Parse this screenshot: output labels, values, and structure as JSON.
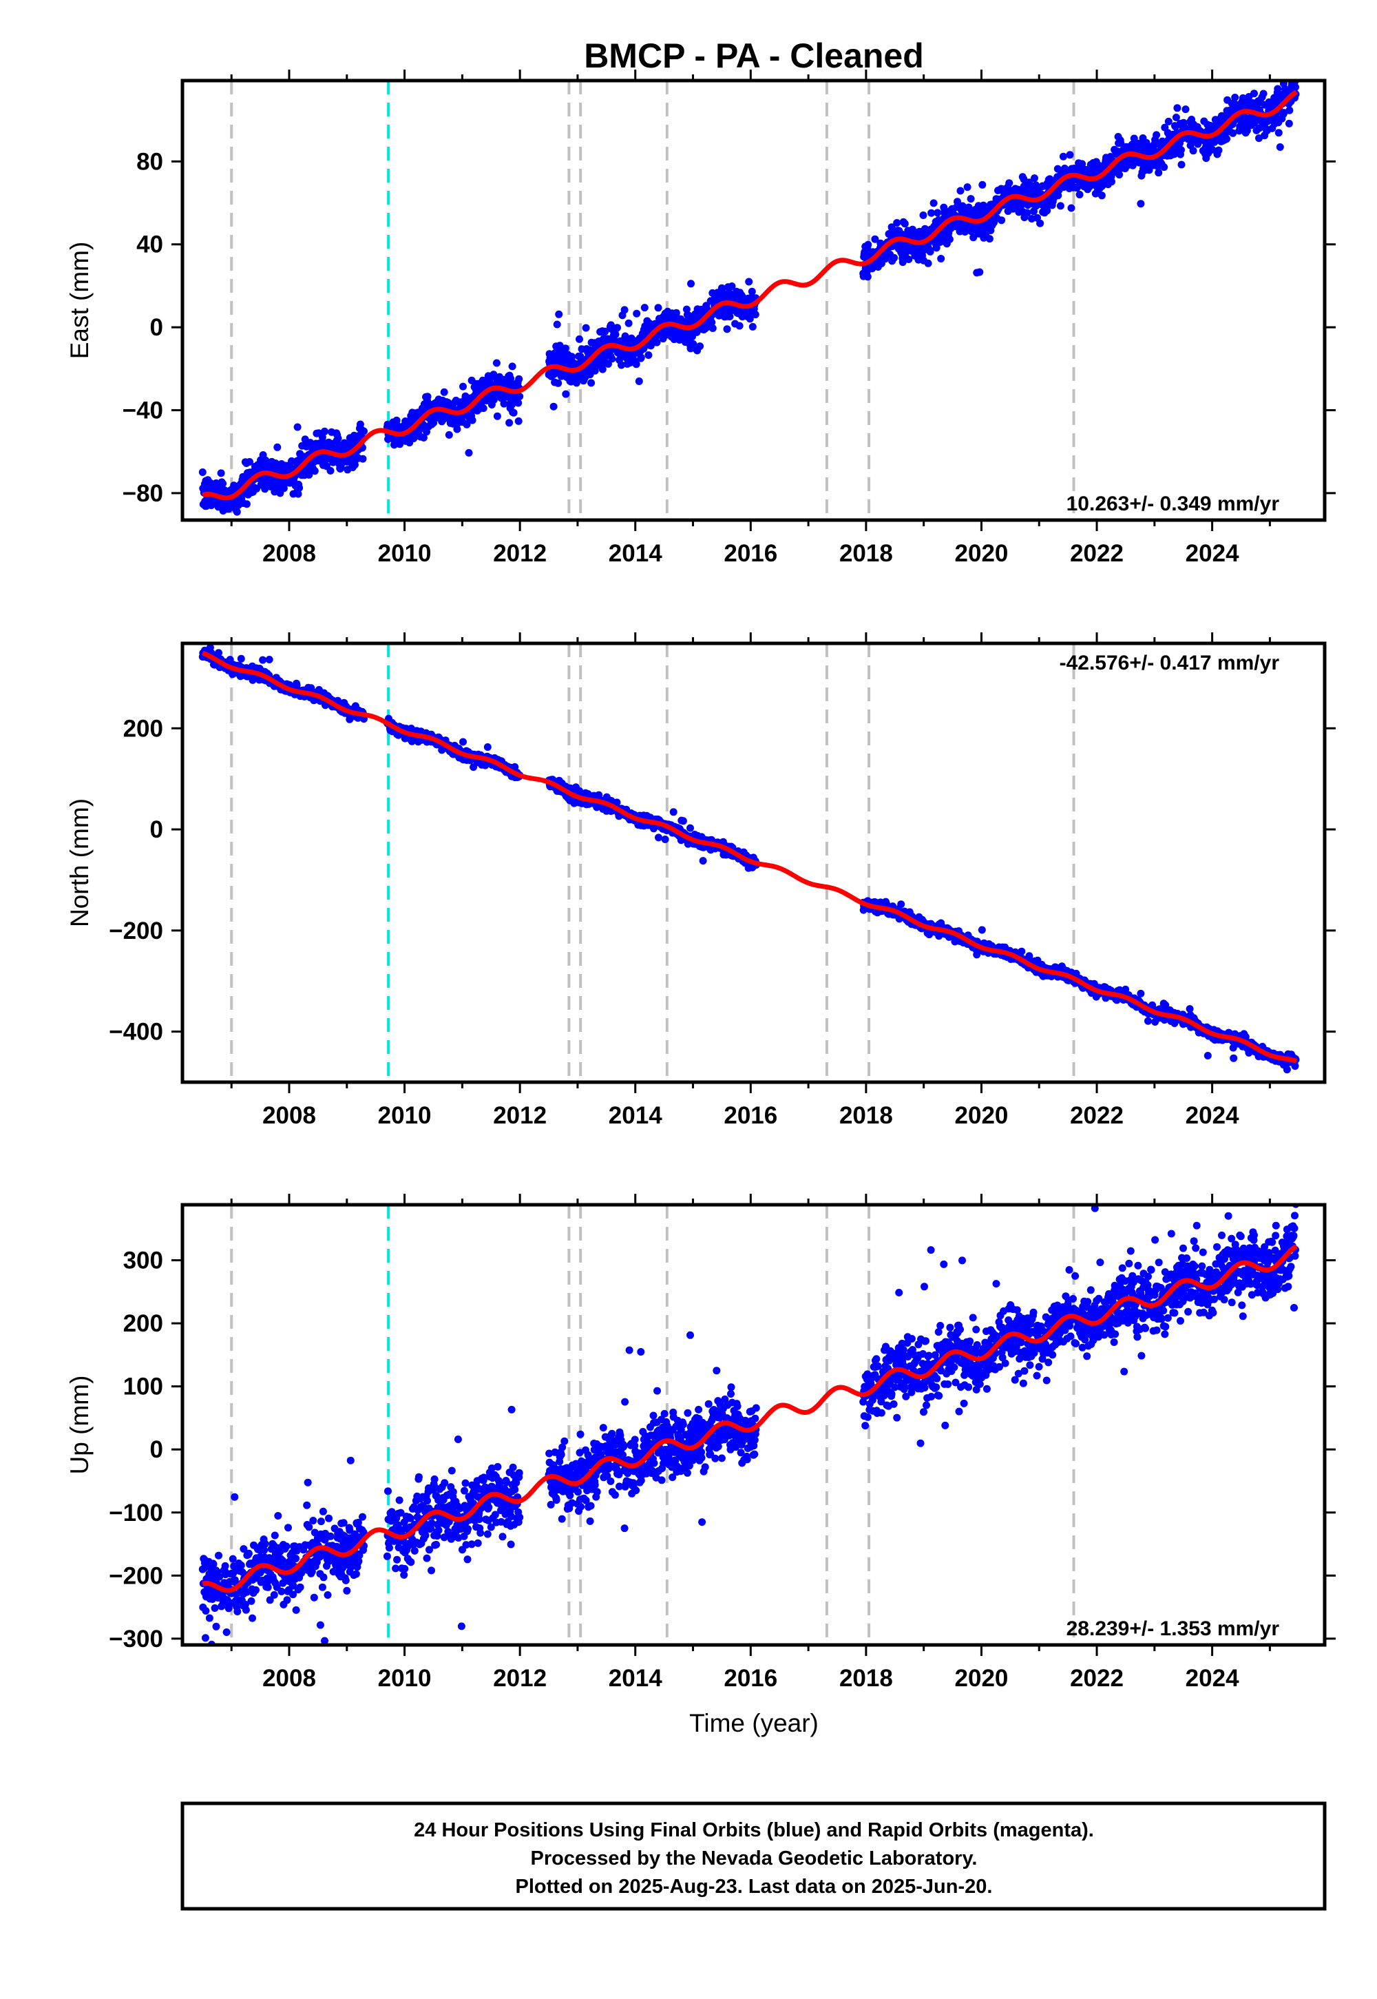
{
  "title": "BMCP  - PA - Cleaned",
  "x_axis_label": "Time (year)",
  "footer": {
    "line1": "24 Hour Positions Using Final Orbits (blue) and Rapid Orbits (magenta).",
    "line2": "Processed by the Nevada Geodetic Laboratory.",
    "line3": "Plotted on 2025-Aug-23. Last data on 2025-Jun-20."
  },
  "colors": {
    "data_points": "#0000ff",
    "model_line": "#ff0000",
    "equipment_change_lines": "#c0c0c0",
    "event_line": "#00e5e5"
  },
  "chart_data": [
    {
      "type": "scatter",
      "panel": "east",
      "ylabel": "East (mm)",
      "rate_text": "10.263+/- 0.349 mm/yr",
      "rate_position": "bottom-right",
      "xlim": [
        2006.15,
        2025.95
      ],
      "ylim": [
        -93,
        119
      ],
      "xticks": [
        2008,
        2010,
        2012,
        2014,
        2016,
        2018,
        2020,
        2022,
        2024
      ],
      "yticks": [
        -80,
        -40,
        0,
        40,
        80
      ],
      "trend_start": -84,
      "rate": 10.263,
      "seasonal_amp": 3,
      "noise": 4,
      "data_segments": [
        [
          2006.5,
          2009.3
        ],
        [
          2009.7,
          2012.0
        ],
        [
          2012.5,
          2016.1
        ],
        [
          2017.95,
          2025.45
        ]
      ],
      "data_range": [
        2006.5,
        2025.46
      ],
      "vertical_lines_dashed_gray": [
        2007.0,
        2012.85,
        2013.05,
        2014.55,
        2017.32,
        2018.05,
        2021.6
      ],
      "vertical_line_cyan": 2009.72
    },
    {
      "type": "scatter",
      "panel": "north",
      "ylabel": "North (mm)",
      "rate_text": "-42.576+/- 0.417 mm/yr",
      "rate_position": "top-right",
      "xlim": [
        2006.15,
        2025.95
      ],
      "ylim": [
        -500,
        368
      ],
      "xticks": [
        2008,
        2010,
        2012,
        2014,
        2016,
        2018,
        2020,
        2022,
        2024
      ],
      "yticks": [
        -400,
        -200,
        0,
        200
      ],
      "trend_start": 345,
      "rate": -42.576,
      "seasonal_amp": 4,
      "noise": 5,
      "data_segments": [
        [
          2006.5,
          2009.3
        ],
        [
          2009.7,
          2012.0
        ],
        [
          2012.5,
          2016.1
        ],
        [
          2017.95,
          2025.45
        ]
      ],
      "data_range": [
        2006.5,
        2025.46
      ],
      "vertical_lines_dashed_gray": [
        2007.0,
        2012.85,
        2013.05,
        2014.55,
        2017.32,
        2018.05,
        2021.6
      ],
      "vertical_line_cyan": 2009.72
    },
    {
      "type": "scatter",
      "panel": "up",
      "ylabel": "Up (mm)",
      "rate_text": "28.239+/- 1.353 mm/yr",
      "rate_position": "bottom-right",
      "xlim": [
        2006.15,
        2025.95
      ],
      "ylim": [
        -310,
        388
      ],
      "xticks": [
        2008,
        2010,
        2012,
        2014,
        2016,
        2018,
        2020,
        2022,
        2024
      ],
      "yticks": [
        -300,
        -200,
        -100,
        0,
        100,
        200,
        300
      ],
      "trend_start": -225,
      "rate": 28.239,
      "seasonal_amp": 12,
      "noise": 24,
      "data_segments": [
        [
          2006.5,
          2009.3
        ],
        [
          2009.7,
          2012.0
        ],
        [
          2012.5,
          2016.1
        ],
        [
          2017.95,
          2025.45
        ]
      ],
      "data_range": [
        2006.5,
        2025.46
      ],
      "vertical_lines_dashed_gray": [
        2007.0,
        2012.85,
        2013.05,
        2014.55,
        2017.32,
        2018.05,
        2021.6
      ],
      "vertical_line_cyan": 2009.72
    }
  ]
}
